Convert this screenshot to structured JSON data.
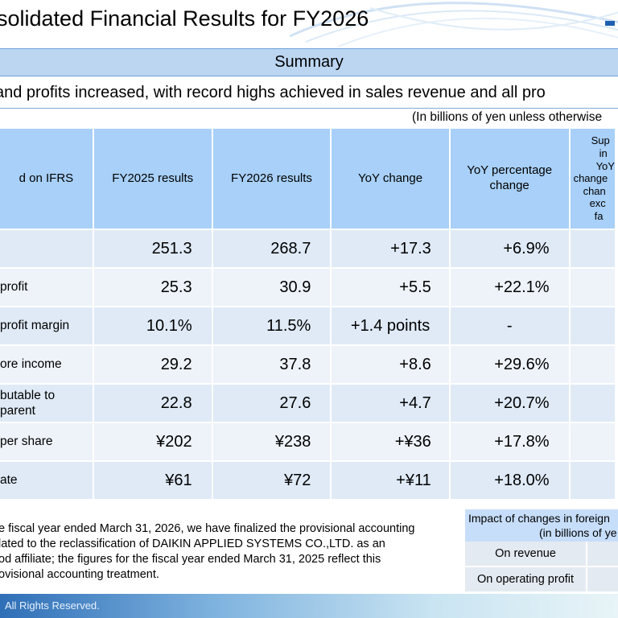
{
  "slide": {
    "title": "solidated Financial Results for FY2026",
    "summary_label": "Summary",
    "headline": "and profits increased, with record highs achieved in sales revenue and all pro",
    "unit_note": "(In billions of yen unless otherwise"
  },
  "table": {
    "headers": {
      "col0": "d on IFRS",
      "col1": "FY2025 results",
      "col2": "FY2026 results",
      "col3": "YoY change",
      "col4": "YoY percentage change",
      "col5_lines": [
        "Sup",
        "in",
        "YoY",
        "change",
        "chan",
        "exc",
        "fa"
      ]
    },
    "rows": [
      {
        "label": "",
        "fy2025": "251.3",
        "fy2026": "268.7",
        "yoy": "+17.3",
        "pct": "+6.9%"
      },
      {
        "label": " profit",
        "fy2025": "25.3",
        "fy2026": "30.9",
        "yoy": "+5.5",
        "pct": "+22.1%"
      },
      {
        "label": " profit margin",
        "fy2025": "10.1%",
        "fy2026": "11.5%",
        "yoy": "+1.4 points",
        "pct": "-"
      },
      {
        "label": "ore income\n",
        "fy2025": "29.2",
        "fy2026": "37.8",
        "yoy": "+8.6",
        "pct": "+29.6%"
      },
      {
        "label": "butable to\n parent",
        "fy2025": "22.8",
        "fy2026": "27.6",
        "yoy": "+4.7",
        "pct": "+20.7%"
      },
      {
        "label": "per share",
        "fy2025": "¥202",
        "fy2026": "¥238",
        "yoy": "+¥36",
        "pct": "+17.8%"
      },
      {
        "label": "ate",
        "fy2025": "¥61",
        "fy2026": "¥72",
        "yoy": "+¥11",
        "pct": "+18.0%"
      }
    ]
  },
  "footnote": {
    "line1": "e fiscal year ended March 31, 2026, we have finalized the provisional accounting",
    "line2": "lated to the reclassification of DAIKIN APPLIED SYSTEMS CO.,LTD. as an",
    "line3": "od affiliate; the figures for the fiscal year ended March 31, 2025 reflect this",
    "line4": "ovisional accounting treatment."
  },
  "fx_box": {
    "title_line1": "Impact of changes in foreign",
    "title_line2": "(in billions of ye",
    "row1": "On revenue",
    "row2": "On operating profit"
  },
  "footer": {
    "copyright": "All Rights Reserved."
  },
  "colors": {
    "header_cell": "#a8d0f8",
    "row_odd": "#dfeaf6",
    "row_even": "#eef3f9",
    "summary_bar": "#bcd6f2",
    "brand_blue": "#2f6fb7"
  }
}
